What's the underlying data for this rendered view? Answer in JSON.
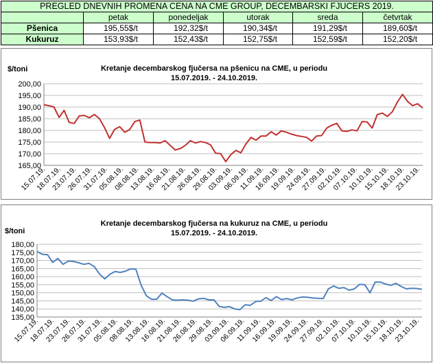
{
  "table": {
    "title": "PREGLED DNEVNIH PROMENA CENA NA CME GROUP, DECEMBARSKI  FJUCERS 2019.",
    "days": [
      "petak",
      "ponedeljak",
      "utorak",
      "sreda",
      "četvrtak"
    ],
    "rows": [
      {
        "label": "Pšenica",
        "values": [
          "195,55$/t",
          "192,32$/t",
          "190,34$/t",
          "191,29$/t",
          "189,60$/t"
        ]
      },
      {
        "label": "Kukuruz",
        "values": [
          "153,93$/t",
          "152,43$/t",
          "152,75$/t",
          "152,59$/t",
          "152,20$/t"
        ]
      }
    ]
  },
  "chart_data": [
    {
      "type": "line",
      "title": "Kretanje decembarskog fjučersa na  pšenicu na CME, u periodu",
      "subtitle": "15.07.2019. - 24.10.2019.",
      "ylabel": "$/toni",
      "xlabel": "",
      "ylim": [
        165,
        200
      ],
      "yticks": [
        "165,00",
        "170,00",
        "175,00",
        "180,00",
        "185,00",
        "190,00",
        "195,00",
        "200,00"
      ],
      "xticks": [
        "15.07.19.",
        "18.07.19.",
        "23.07.19.",
        "26.07.19.",
        "31.07.19.",
        "05.08.19.",
        "08.08.19.",
        "13.08.19.",
        "16.08.19.",
        "21.08.19.",
        "26.08.19.",
        "29.08.19.",
        "03.09.19.",
        "06.09.19.",
        "11.09.19.",
        "16.09.19.",
        "19.09.19.",
        "24.09.19.",
        "27.09.19.",
        "02.10.19.",
        "07.10.19.",
        "10.10.19.",
        "15.10.19.",
        "18.10.19.",
        "23.10.19."
      ],
      "grid": true,
      "legend": "none",
      "color": "#c0302e",
      "series": [
        {
          "values": [
            191.0,
            190.6,
            190.0,
            185.6,
            188.6,
            183.4,
            183.0,
            186.2,
            186.4,
            185.4,
            186.8,
            185.0,
            181.2,
            176.6,
            180.4,
            181.6,
            179.2,
            180.4,
            183.8,
            184.4,
            175.0,
            174.8,
            174.8,
            174.6,
            175.6,
            173.6,
            171.6,
            172.2,
            173.6,
            175.6,
            174.6,
            175.2,
            174.8,
            173.8,
            170.2,
            170.0,
            166.6,
            169.6,
            171.4,
            170.4,
            174.2,
            177.0,
            175.8,
            177.6,
            177.6,
            179.4,
            178.0,
            179.8,
            179.2,
            178.4,
            177.8,
            177.4,
            177.0,
            175.4,
            177.6,
            177.8,
            181.0,
            182.2,
            183.0,
            179.8,
            179.6,
            180.2,
            179.8,
            183.8,
            183.6,
            181.0,
            186.8,
            187.4,
            186.0,
            188.0,
            192.2,
            195.4,
            192.4,
            190.6,
            191.4,
            189.6
          ]
        }
      ]
    },
    {
      "type": "line",
      "title": "Kretanje decembarskog fjučersa na  kukuruz na CME, u periodu",
      "subtitle": "15.07.2019. - 24.10.2019.",
      "ylabel": "$/toni",
      "xlabel": "",
      "ylim": [
        135,
        180
      ],
      "yticks": [
        "135,00",
        "140,00",
        "145,00",
        "150,00",
        "155,00",
        "160,00",
        "165,00",
        "170,00",
        "175,00",
        "180,00"
      ],
      "xticks": [
        "15.07.19.",
        "18.07.19.",
        "23.07.19.",
        "26.07.19.",
        "31.07.19.",
        "05.08.19.",
        "08.08.19.",
        "13.08.19.",
        "16.08.19.",
        "21.08.19.",
        "26.08.19.",
        "29.08.19.",
        "03.09.19.",
        "06.09.19.",
        "11.09.19.",
        "16.09.19.",
        "19.09.19.",
        "24.09.19.",
        "27.09.19.",
        "02.10.19.",
        "07.10.19.",
        "10.10.19.",
        "15.10.19.",
        "18.10.19.",
        "23.10.19."
      ],
      "grid": true,
      "legend": "none",
      "color": "#4f81bd",
      "series": [
        {
          "values": [
            175.6,
            173.8,
            173.6,
            168.8,
            171.2,
            167.6,
            169.6,
            169.4,
            168.6,
            167.6,
            168.2,
            166.2,
            161.6,
            158.6,
            161.4,
            163.2,
            162.6,
            163.4,
            164.8,
            164.6,
            154.8,
            148.2,
            146.0,
            146.0,
            149.8,
            147.6,
            145.6,
            145.4,
            145.6,
            145.4,
            144.8,
            146.2,
            146.6,
            145.6,
            145.6,
            141.6,
            141.0,
            141.4,
            140.0,
            139.6,
            142.6,
            142.2,
            144.6,
            144.8,
            147.0,
            145.2,
            147.6,
            145.8,
            146.4,
            145.6,
            146.8,
            147.4,
            147.2,
            146.8,
            146.6,
            146.4,
            152.4,
            154.2,
            152.8,
            153.2,
            151.6,
            152.4,
            155.2,
            155.0,
            150.0,
            156.6,
            156.6,
            155.4,
            154.6,
            155.8,
            153.9,
            152.4,
            152.8,
            152.6,
            152.2
          ]
        }
      ]
    }
  ]
}
